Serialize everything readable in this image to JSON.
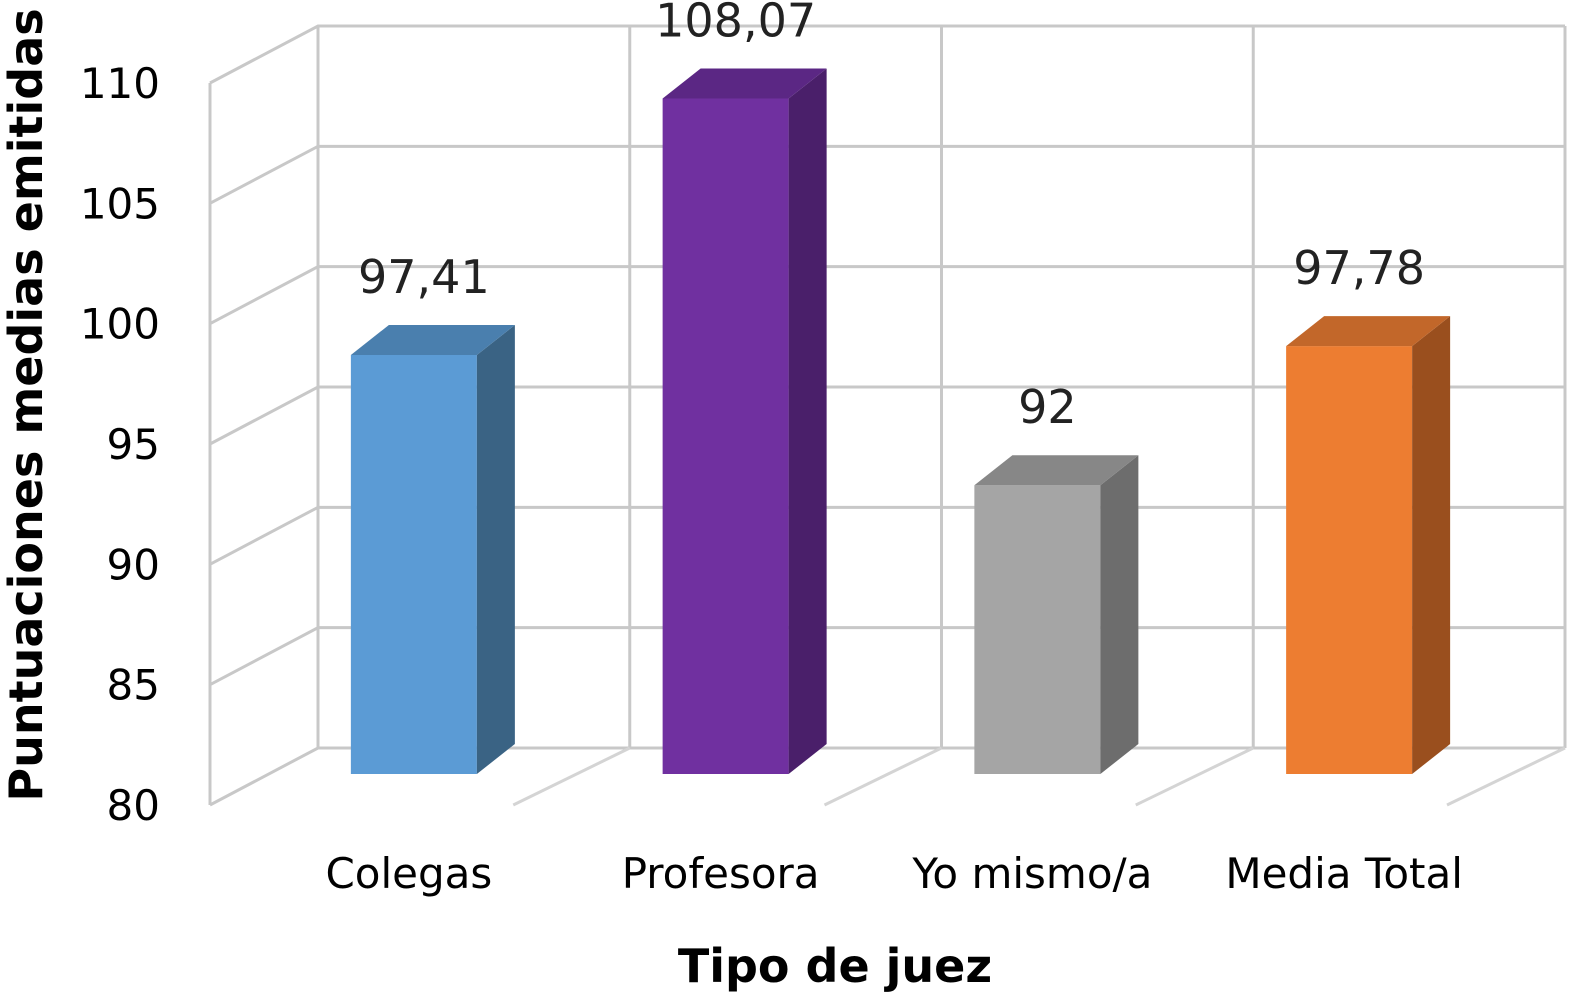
{
  "chart_data": {
    "type": "bar",
    "style": "3d-column",
    "categories": [
      "Colegas",
      "Profesora",
      "Yo mismo/a",
      "Media Total"
    ],
    "values": [
      97.41,
      108.07,
      92,
      97.78
    ],
    "value_labels": [
      "97,41",
      "108,07",
      "92",
      "97,78"
    ],
    "colors": [
      "#5B9BD5",
      "#7030A0",
      "#A5A5A5",
      "#ED7D31"
    ],
    "side_colors": [
      "#3A6384",
      "#4A1F6A",
      "#6D6D6D",
      "#9A4F1E"
    ],
    "top_colors": [
      "#4A7FAE",
      "#5B2784",
      "#878787",
      "#C2672A"
    ],
    "xlabel": "Tipo de juez",
    "ylabel": "Puntuaciones medias emitidas",
    "ylim": [
      80,
      110
    ],
    "yticks": [
      "80",
      "85",
      "90",
      "95",
      "100",
      "105",
      "110"
    ],
    "ytick_values": [
      80,
      85,
      90,
      95,
      100,
      105,
      110
    ],
    "grid": true,
    "legend": "none"
  }
}
